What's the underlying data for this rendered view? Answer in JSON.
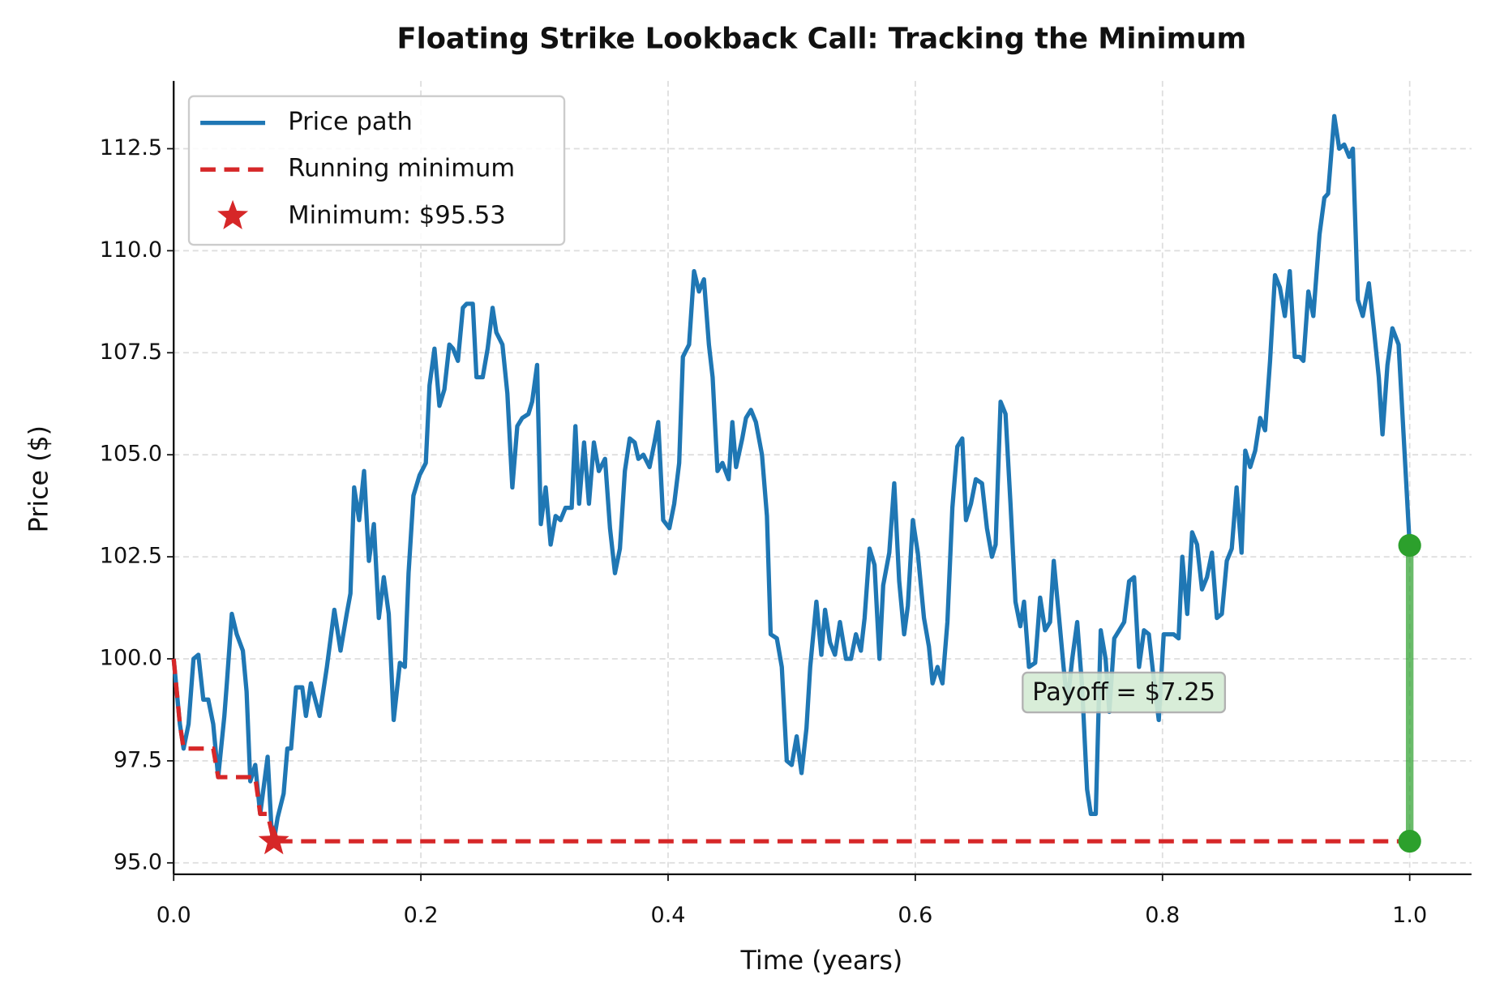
{
  "chart_data": {
    "type": "line",
    "title": "Floating Strike Lookback Call: Tracking the Minimum",
    "xlabel": "Time (years)",
    "ylabel": "Price ($)",
    "xlim": [
      0,
      1.05
    ],
    "ylim": [
      94.72,
      114.16
    ],
    "xticks": [
      {
        "value": 0,
        "label": "0.0"
      },
      0.2,
      0.4,
      0.6,
      0.8,
      {
        "value": 1,
        "label": "1.0"
      }
    ],
    "yticks": [
      {
        "value": 95,
        "label": "95.0"
      },
      97.5,
      {
        "value": 100,
        "label": "100.0"
      },
      102.5,
      {
        "value": 105,
        "label": "105.0"
      },
      107.5,
      {
        "value": 110,
        "label": "110.0"
      },
      112.5
    ],
    "grid": true,
    "legend": "upper left",
    "series": [
      {
        "name": "Price path",
        "color": "#1f77b4",
        "x": [
          0,
          0.005,
          0.008,
          0.012,
          0.016,
          0.02,
          0.024,
          0.028,
          0.032,
          0.036,
          0.041,
          0.043,
          0.047,
          0.051,
          0.056,
          0.059,
          0.062,
          0.066,
          0.07,
          0.076,
          0.079,
          0.081,
          0.084,
          0.089,
          0.092,
          0.095,
          0.099,
          0.104,
          0.107,
          0.111,
          0.118,
          0.124,
          0.13,
          0.135,
          0.14,
          0.143,
          0.146,
          0.15,
          0.154,
          0.158,
          0.162,
          0.166,
          0.17,
          0.174,
          0.178,
          0.183,
          0.187,
          0.19,
          0.194,
          0.199,
          0.204,
          0.207,
          0.211,
          0.215,
          0.219,
          0.223,
          0.226,
          0.23,
          0.234,
          0.237,
          0.242,
          0.245,
          0.25,
          0.254,
          0.258,
          0.261,
          0.266,
          0.27,
          0.274,
          0.278,
          0.282,
          0.287,
          0.29,
          0.294,
          0.297,
          0.301,
          0.305,
          0.309,
          0.313,
          0.317,
          0.322,
          0.325,
          0.328,
          0.332,
          0.336,
          0.34,
          0.344,
          0.349,
          0.353,
          0.357,
          0.361,
          0.365,
          0.369,
          0.373,
          0.376,
          0.38,
          0.385,
          0.389,
          0.392,
          0.396,
          0.401,
          0.405,
          0.409,
          0.412,
          0.417,
          0.421,
          0.425,
          0.429,
          0.433,
          0.436,
          0.44,
          0.444,
          0.449,
          0.452,
          0.455,
          0.46,
          0.463,
          0.467,
          0.471,
          0.476,
          0.48,
          0.483,
          0.488,
          0.492,
          0.496,
          0.5,
          0.504,
          0.508,
          0.512,
          0.515,
          0.52,
          0.524,
          0.527,
          0.531,
          0.535,
          0.539,
          0.544,
          0.548,
          0.552,
          0.556,
          0.559,
          0.563,
          0.567,
          0.571,
          0.574,
          0.579,
          0.583,
          0.587,
          0.591,
          0.594,
          0.598,
          0.602,
          0.607,
          0.611,
          0.614,
          0.618,
          0.622,
          0.626,
          0.63,
          0.634,
          0.638,
          0.641,
          0.645,
          0.649,
          0.654,
          0.658,
          0.662,
          0.665,
          0.669,
          0.673,
          0.677,
          0.681,
          0.685,
          0.688,
          0.692,
          0.697,
          0.701,
          0.705,
          0.709,
          0.712,
          0.716,
          0.72,
          0.723,
          0.727,
          0.731,
          0.735,
          0.739,
          0.742,
          0.746,
          0.75,
          0.754,
          0.757,
          0.761,
          0.765,
          0.769,
          0.773,
          0.777,
          0.781,
          0.785,
          0.789,
          0.793,
          0.797,
          0.801,
          0.805,
          0.809,
          0.813,
          0.816,
          0.82,
          0.824,
          0.828,
          0.832,
          0.836,
          0.84,
          0.844,
          0.848,
          0.852,
          0.856,
          0.86,
          0.864,
          0.867,
          0.871,
          0.875,
          0.879,
          0.883,
          0.887,
          0.891,
          0.895,
          0.899,
          0.903,
          0.907,
          0.911,
          0.914,
          0.918,
          0.922,
          0.927,
          0.931,
          0.934,
          0.939,
          0.943,
          0.947,
          0.951,
          0.954,
          0.958,
          0.962,
          0.967,
          0.971,
          0.975,
          0.978,
          0.982,
          0.986,
          0.991,
          0.995,
          1.0
        ],
        "values": [
          100.0,
          98.4,
          97.8,
          98.4,
          100.0,
          100.1,
          99.0,
          99.0,
          98.4,
          97.1,
          98.6,
          99.4,
          101.1,
          100.6,
          100.2,
          99.2,
          97.0,
          97.4,
          96.2,
          97.6,
          95.9,
          95.53,
          96.1,
          96.7,
          97.8,
          97.8,
          99.3,
          99.3,
          98.6,
          99.4,
          98.6,
          99.8,
          101.2,
          100.2,
          101.1,
          101.6,
          104.2,
          103.4,
          104.6,
          102.4,
          103.3,
          101.0,
          102.0,
          101.1,
          98.5,
          99.9,
          99.8,
          102.1,
          104.0,
          104.5,
          104.8,
          106.7,
          107.6,
          106.2,
          106.6,
          107.7,
          107.6,
          107.3,
          108.6,
          108.7,
          108.7,
          106.9,
          106.9,
          107.6,
          108.6,
          108.0,
          107.7,
          106.5,
          104.2,
          105.7,
          105.9,
          106.0,
          106.3,
          107.2,
          103.3,
          104.2,
          102.8,
          103.5,
          103.4,
          103.7,
          103.7,
          105.7,
          103.8,
          105.3,
          103.8,
          105.3,
          104.6,
          104.9,
          103.2,
          102.1,
          102.7,
          104.6,
          105.4,
          105.3,
          104.9,
          105.0,
          104.7,
          105.3,
          105.8,
          103.4,
          103.2,
          103.8,
          104.8,
          107.4,
          107.7,
          109.5,
          109.0,
          109.3,
          107.7,
          106.9,
          104.6,
          104.8,
          104.4,
          105.8,
          104.7,
          105.4,
          105.9,
          106.1,
          105.8,
          105.0,
          103.5,
          100.6,
          100.5,
          99.8,
          97.5,
          97.4,
          98.1,
          97.2,
          98.3,
          99.8,
          101.4,
          100.1,
          101.2,
          100.4,
          100.1,
          100.9,
          100.0,
          100.0,
          100.6,
          100.2,
          101.0,
          102.7,
          102.3,
          100.0,
          101.8,
          102.6,
          104.3,
          101.9,
          100.6,
          101.3,
          103.4,
          102.6,
          101.0,
          100.3,
          99.4,
          99.8,
          99.4,
          100.9,
          103.7,
          105.2,
          105.4,
          103.4,
          103.8,
          104.4,
          104.3,
          103.2,
          102.5,
          102.8,
          106.3,
          106.0,
          103.8,
          101.4,
          100.8,
          101.4,
          99.8,
          99.9,
          101.5,
          100.7,
          100.9,
          102.4,
          101.1,
          99.8,
          98.9,
          100.0,
          100.9,
          99.3,
          96.8,
          96.2,
          96.2,
          100.7,
          100.0,
          98.7,
          100.5,
          100.7,
          100.9,
          101.9,
          102.0,
          99.8,
          100.7,
          100.6,
          99.5,
          98.5,
          100.6,
          100.6,
          100.6,
          100.5,
          102.5,
          101.1,
          103.1,
          102.8,
          101.7,
          102.0,
          102.6,
          101.0,
          101.1,
          102.4,
          102.7,
          104.2,
          102.6,
          105.1,
          104.7,
          105.1,
          105.9,
          105.6,
          107.3,
          109.4,
          109.1,
          108.4,
          109.5,
          107.4,
          107.4,
          107.3,
          109.0,
          108.4,
          110.4,
          111.3,
          111.4,
          113.3,
          112.5,
          112.6,
          112.3,
          112.5,
          108.8,
          108.4,
          109.2,
          108.1,
          106.9,
          105.5,
          107.2,
          108.1,
          107.7,
          105.5,
          102.78
        ]
      },
      {
        "name": "Running minimum",
        "color": "#d62728",
        "style": "dashed",
        "x": [
          0,
          0.005,
          0.008,
          0.032,
          0.036,
          0.066,
          0.07,
          0.076,
          0.081,
          1.0
        ],
        "values": [
          100,
          98.4,
          97.8,
          97.8,
          97.1,
          97.1,
          96.2,
          96.2,
          95.53,
          95.53
        ]
      }
    ],
    "minimum": {
      "label": "Minimum: $95.53",
      "x": 0.081,
      "y": 95.53,
      "color": "#d62728"
    },
    "payoff": {
      "label": "Payoff = $7.25",
      "x": 1.0,
      "values": [
        95.53,
        102.78
      ],
      "color": "#2ca02c"
    }
  }
}
